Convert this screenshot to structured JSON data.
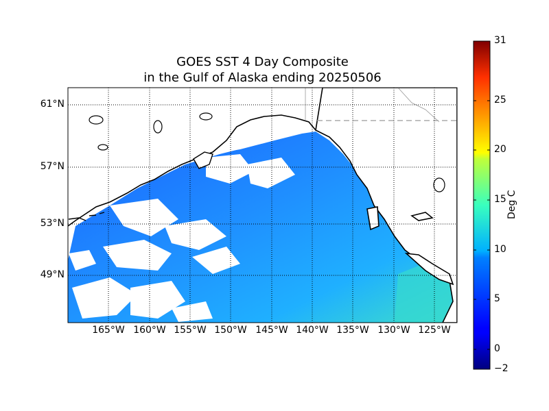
{
  "title": {
    "line1": "GOES SST 4 Day Composite",
    "line2": "in the Gulf of Alaska ending 20250506"
  },
  "map": {
    "lat_labels": [
      "61°N",
      "57°N",
      "53°N",
      "49°N"
    ],
    "lon_labels": [
      "165°W",
      "160°W",
      "155°W",
      "150°W",
      "145°W",
      "140°W",
      "135°W",
      "130°W",
      "125°W"
    ],
    "no_data_color": "#ffffff",
    "coastline_color": "#000000"
  },
  "colorbar": {
    "label": "Deg C",
    "ticks": [
      "31",
      "25",
      "20",
      "15",
      "10",
      "5",
      "0",
      "−2"
    ],
    "min": -2,
    "max": 31,
    "colormap": "jet"
  }
}
